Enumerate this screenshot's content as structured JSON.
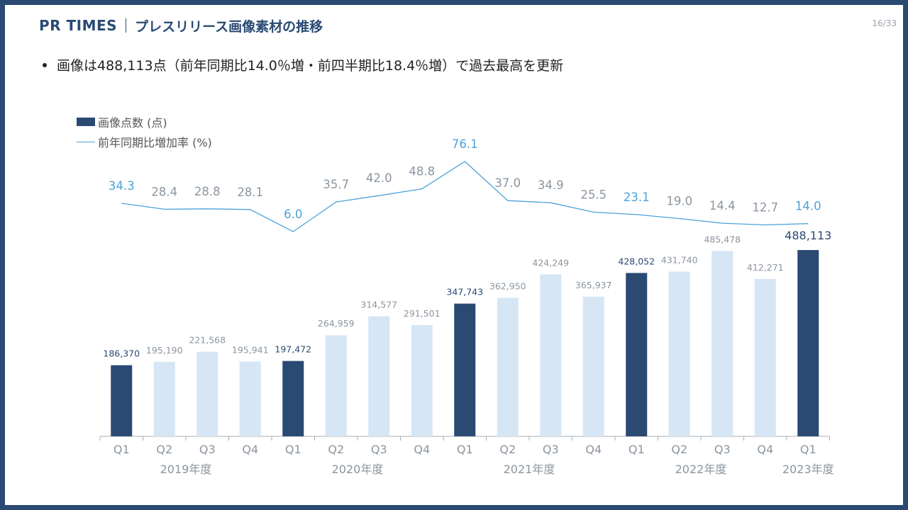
{
  "header": {
    "brand": "PR TIMES",
    "title": "プレスリリース画像素材の推移",
    "page": "16/33"
  },
  "bullet": "画像は488,113点（前年同期比14.0％増・前四半期比18.4％増）で過去最高を更新",
  "colors": {
    "frame": "#2a4a74",
    "bar_highlight": "#2a4a74",
    "bar_normal": "#d6e6f5",
    "line": "#4da3d9",
    "label_gray": "#8c959f"
  },
  "chart_data": {
    "type": "bar",
    "title": "",
    "legend": [
      {
        "name": "画像点数 (点)",
        "kind": "bar"
      },
      {
        "name": "前年同期比増加率 (%)",
        "kind": "line"
      }
    ],
    "categories": [
      "Q1",
      "Q2",
      "Q3",
      "Q4",
      "Q1",
      "Q2",
      "Q3",
      "Q4",
      "Q1",
      "Q2",
      "Q3",
      "Q4",
      "Q1",
      "Q2",
      "Q3",
      "Q4",
      "Q1"
    ],
    "years": [
      {
        "label": "2019年度",
        "start": 0,
        "count": 4
      },
      {
        "label": "2020年度",
        "start": 4,
        "count": 4
      },
      {
        "label": "2021年度",
        "start": 8,
        "count": 4
      },
      {
        "label": "2022年度",
        "start": 12,
        "count": 4
      },
      {
        "label": "2023年度",
        "start": 16,
        "count": 1
      }
    ],
    "series": [
      {
        "name": "画像点数 (点)",
        "type": "bar",
        "values": [
          186370,
          195190,
          221568,
          195941,
          197472,
          264959,
          314577,
          291501,
          347743,
          362950,
          424249,
          365937,
          428052,
          431740,
          485478,
          412271,
          488113
        ],
        "labels": [
          "186,370",
          "195,190",
          "221,568",
          "195,941",
          "197,472",
          "264,959",
          "314,577",
          "291,501",
          "347,743",
          "362,950",
          "424,249",
          "365,937",
          "428,052",
          "431,740",
          "485,478",
          "412,271",
          "488,113"
        ],
        "highlight": [
          true,
          false,
          false,
          false,
          true,
          false,
          false,
          false,
          true,
          false,
          false,
          false,
          true,
          false,
          false,
          false,
          true
        ]
      },
      {
        "name": "前年同期比増加率 (%)",
        "type": "line",
        "values": [
          34.3,
          28.4,
          28.8,
          28.1,
          6.0,
          35.7,
          42.0,
          48.8,
          76.1,
          37.0,
          34.9,
          25.5,
          23.1,
          19.0,
          14.4,
          12.7,
          14.0
        ],
        "labels": [
          "34.3",
          "28.4",
          "28.8",
          "28.1",
          "6.0",
          "35.7",
          "42.0",
          "48.8",
          "76.1",
          "37.0",
          "34.9",
          "25.5",
          "23.1",
          "19.0",
          "14.4",
          "12.7",
          "14.0"
        ],
        "highlight": [
          true,
          false,
          false,
          false,
          true,
          false,
          false,
          false,
          true,
          false,
          false,
          false,
          true,
          false,
          false,
          false,
          true
        ]
      }
    ],
    "ylim_bar": [
      0,
      488113
    ],
    "ylim_line": [
      6.0,
      76.1
    ]
  }
}
